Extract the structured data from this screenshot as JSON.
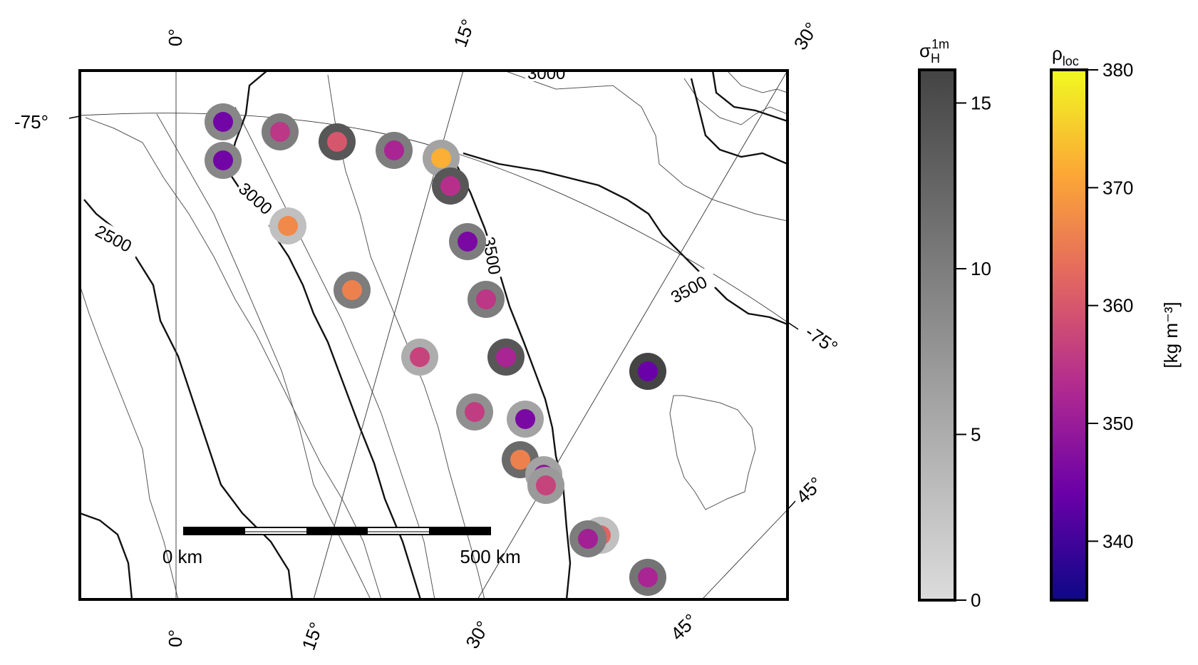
{
  "map": {
    "graticule": {
      "top_labels": [
        "0°",
        "15°",
        "30°"
      ],
      "bottom_labels": [
        "0°",
        "15°",
        "30°",
        "45°"
      ],
      "right_labels": [
        "45°",
        "-75°"
      ],
      "left_labels": [
        "-75°"
      ]
    },
    "contour_labels": [
      "3000",
      "2500",
      "3500",
      "3000",
      "3500"
    ],
    "scale_bar": {
      "left_label": "0 km",
      "right_label": "500 km"
    },
    "sites": [
      {
        "id": 1,
        "rho": 345,
        "sigma": 9
      },
      {
        "id": 2,
        "rho": 355,
        "sigma": 10
      },
      {
        "id": 3,
        "rho": 360,
        "sigma": 14
      },
      {
        "id": 4,
        "rho": 352,
        "sigma": 10
      },
      {
        "id": 5,
        "rho": 372,
        "sigma": 6
      },
      {
        "id": 6,
        "rho": 354,
        "sigma": 14
      },
      {
        "id": 7,
        "rho": 345,
        "sigma": 9
      },
      {
        "id": 8,
        "rho": 367,
        "sigma": 3
      },
      {
        "id": 9,
        "rho": 346,
        "sigma": 10
      },
      {
        "id": 10,
        "rho": 366,
        "sigma": 10
      },
      {
        "id": 11,
        "rho": 355,
        "sigma": 10
      },
      {
        "id": 12,
        "rho": 357,
        "sigma": 5
      },
      {
        "id": 13,
        "rho": 352,
        "sigma": 14
      },
      {
        "id": 14,
        "rho": 344,
        "sigma": 16
      },
      {
        "id": 15,
        "rho": 356,
        "sigma": 8
      },
      {
        "id": 16,
        "rho": 346,
        "sigma": 6
      },
      {
        "id": 17,
        "rho": 366,
        "sigma": 12
      },
      {
        "id": 18,
        "rho": 349,
        "sigma": 6
      },
      {
        "id": 19,
        "rho": 357,
        "sigma": 7
      },
      {
        "id": 20,
        "rho": 362,
        "sigma": 3
      },
      {
        "id": 21,
        "rho": 351,
        "sigma": 10
      },
      {
        "id": 22,
        "rho": 352,
        "sigma": 11
      }
    ]
  },
  "colorbar_sigma": {
    "title_main": "σ",
    "title_sub": "H",
    "title_sup": "1m",
    "range": [
      0,
      16
    ],
    "ticks": [
      "0",
      "5",
      "10",
      "15"
    ],
    "colors": [
      "#dcdcdc",
      "#444444"
    ]
  },
  "colorbar_rho": {
    "title_main": "ρ",
    "title_sub": "loc",
    "range": [
      335,
      380
    ],
    "ticks": [
      "340",
      "350",
      "360",
      "370",
      "380"
    ],
    "unit_label": "[kg m⁻³]",
    "colors": [
      "#0d0887",
      "#6a00a8",
      "#b12a90",
      "#e16462",
      "#fca636",
      "#f0f921"
    ]
  }
}
